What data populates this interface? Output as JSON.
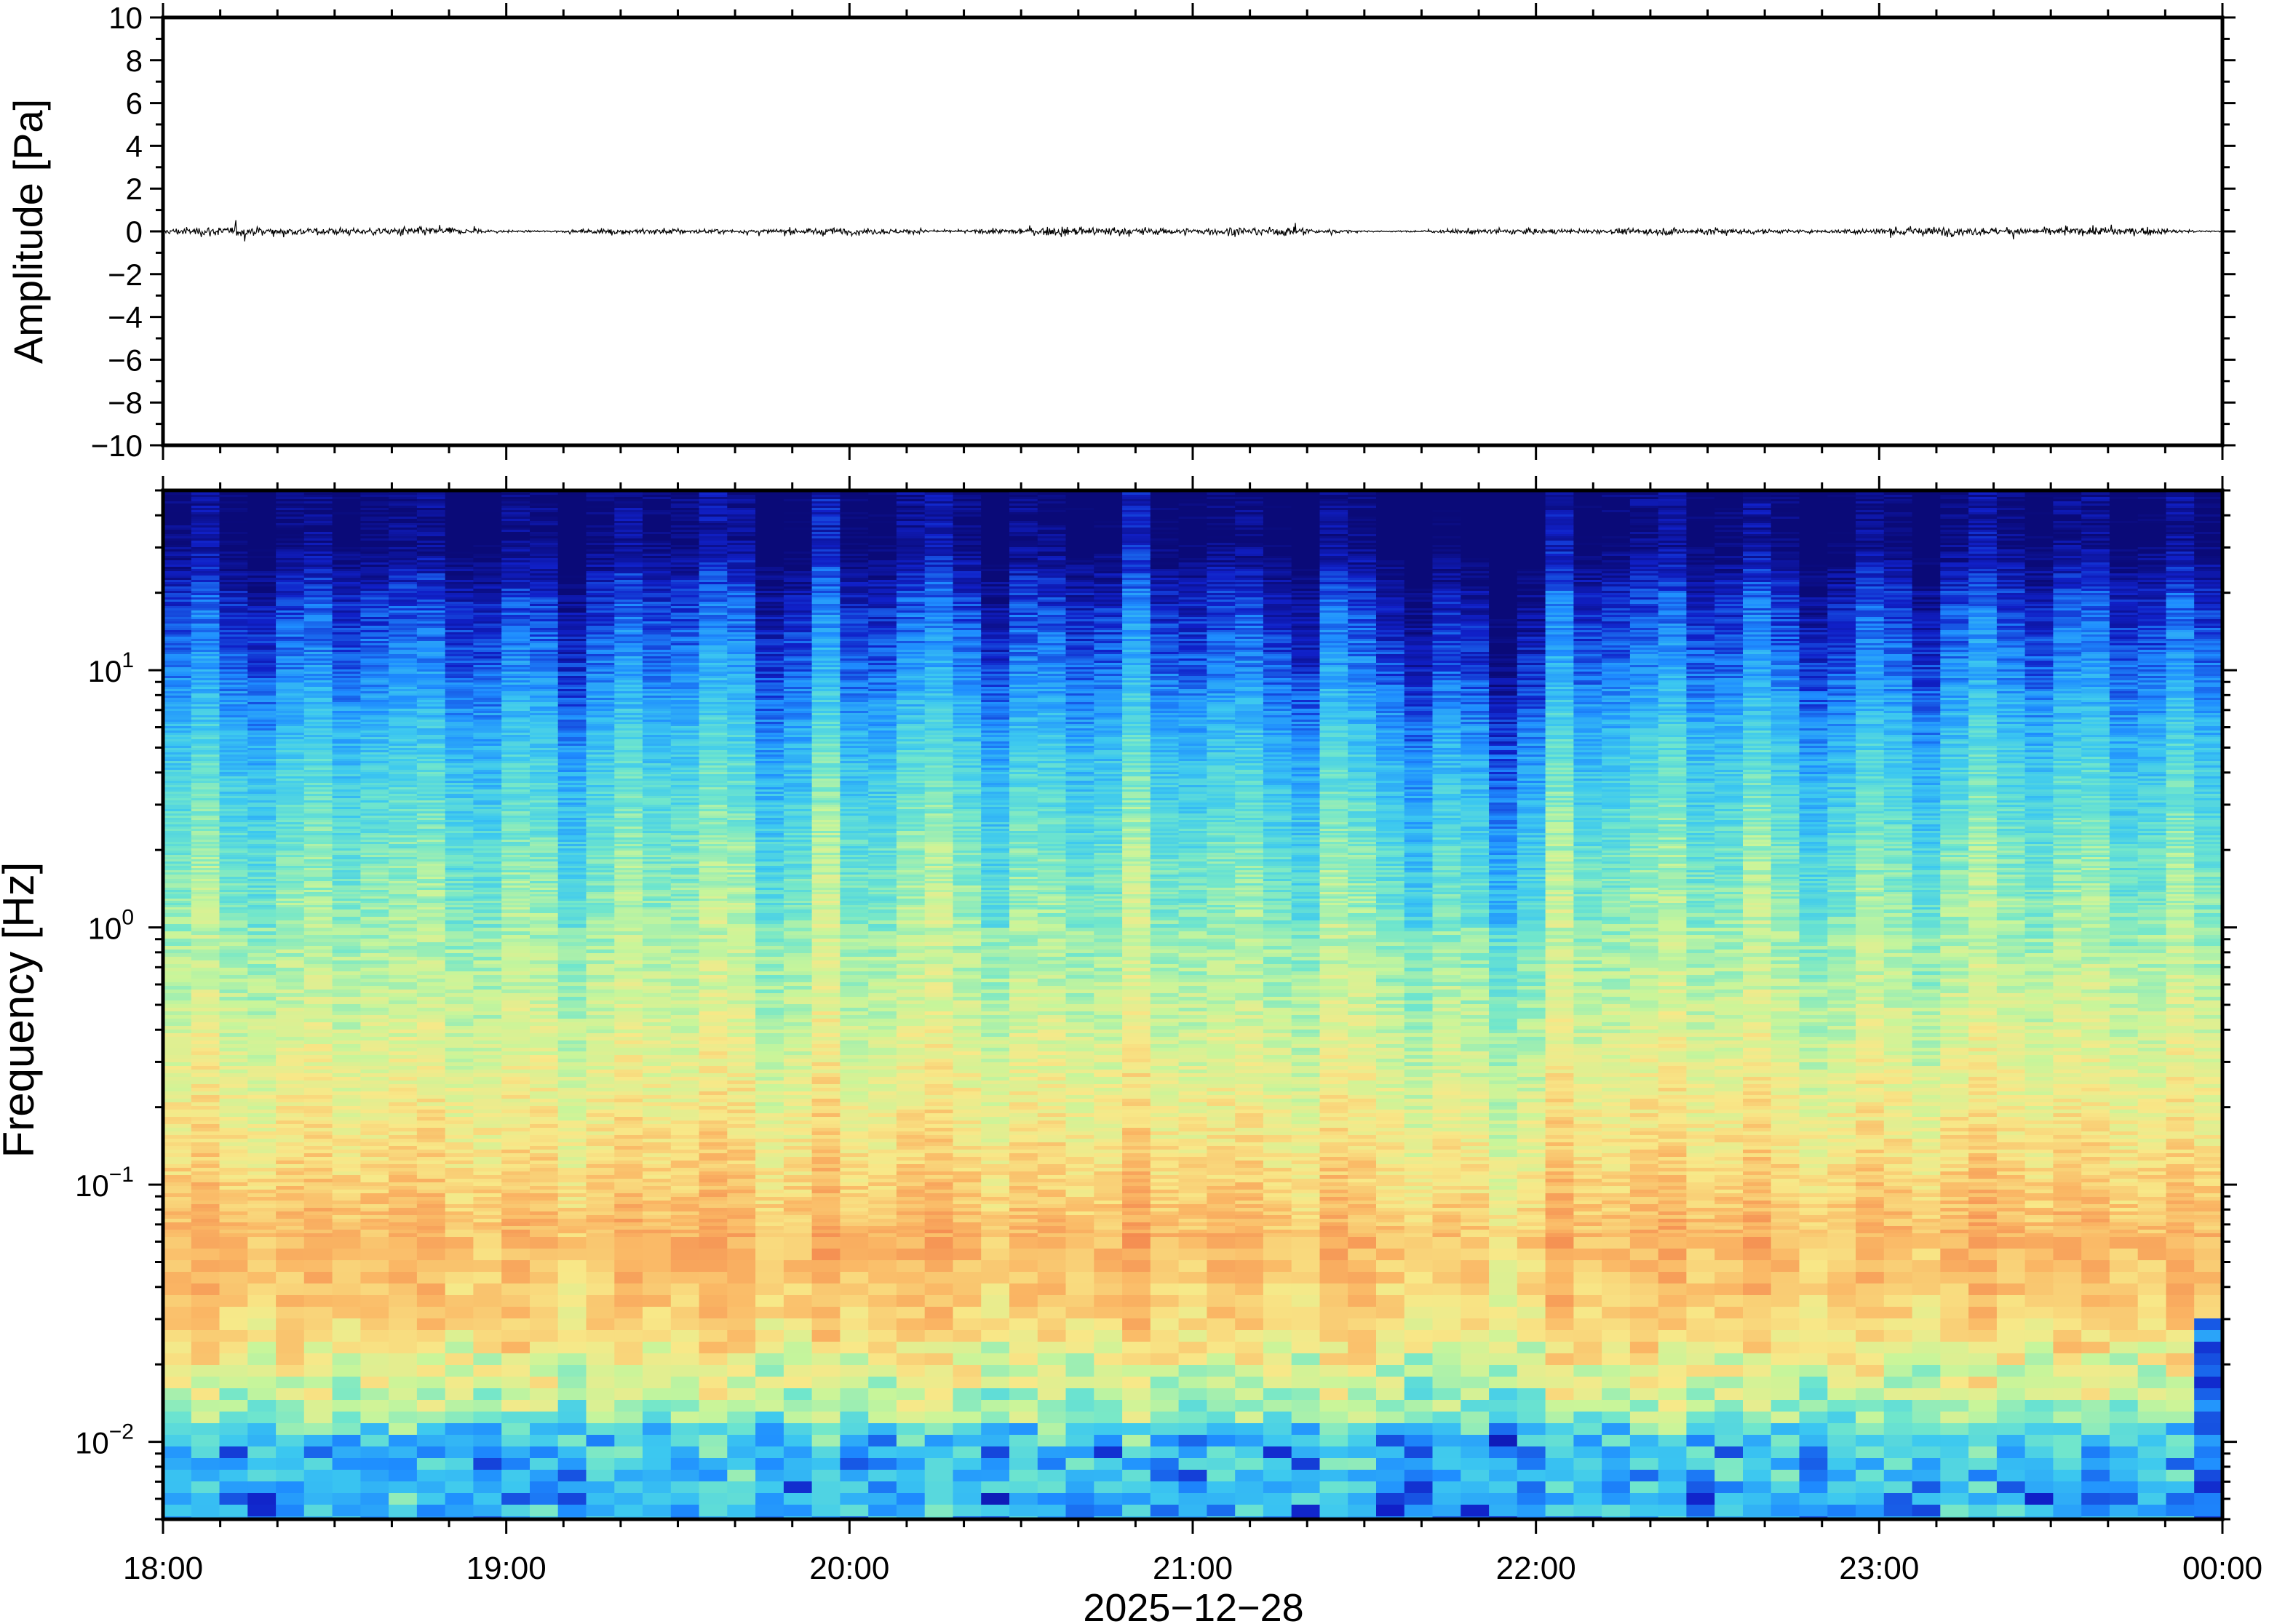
{
  "chart_data": [
    {
      "type": "line",
      "panel": "waveform",
      "ylabel": "Amplitude [Pa]",
      "ylim": [
        -10,
        10
      ],
      "yticks": [
        10,
        8,
        6,
        4,
        2,
        0,
        -2,
        -4,
        -6,
        -8,
        -10
      ],
      "ytick_labels": [
        "10",
        "8",
        "6",
        "4",
        "2",
        "0",
        "−2",
        "−4",
        "−6",
        "−8",
        "−10"
      ],
      "x_range": [
        "18:00",
        "00:00"
      ],
      "line_color": "#000000",
      "series_envelope": {
        "description_units": "Pa",
        "approx_peak_amplitude": 0.7,
        "approx_typical_amplitude": 0.3
      },
      "grid": false
    },
    {
      "type": "heatmap",
      "panel": "spectrogram",
      "ylabel": "Frequency [Hz]",
      "yscale": "log",
      "ylim": [
        0.005,
        50
      ],
      "yticks": [
        {
          "value": 10,
          "base": "10",
          "exp": "1"
        },
        {
          "value": 1,
          "base": "10",
          "exp": "0"
        },
        {
          "value": 0.1,
          "base": "10",
          "exp": "−1"
        },
        {
          "value": 0.01,
          "base": "10",
          "exp": "−2"
        }
      ],
      "xlabel": "2025−12−28",
      "xtick_labels": [
        "18:00",
        "19:00",
        "20:00",
        "21:00",
        "22:00",
        "23:00",
        "00:00"
      ],
      "colormap": [
        "#0a0a78",
        "#1020c8",
        "#1e8cff",
        "#3cc8f0",
        "#70e6cc",
        "#c8f59a",
        "#f8e888",
        "#fab664",
        "#f48a50",
        "#e0483c"
      ],
      "features": {
        "low_power_band_hz": [
          10,
          50
        ],
        "peak_power_band_hz": [
          0.03,
          0.2
        ],
        "quiet_period": [
          "21:35",
          "21:55"
        ]
      },
      "grid": false
    }
  ]
}
